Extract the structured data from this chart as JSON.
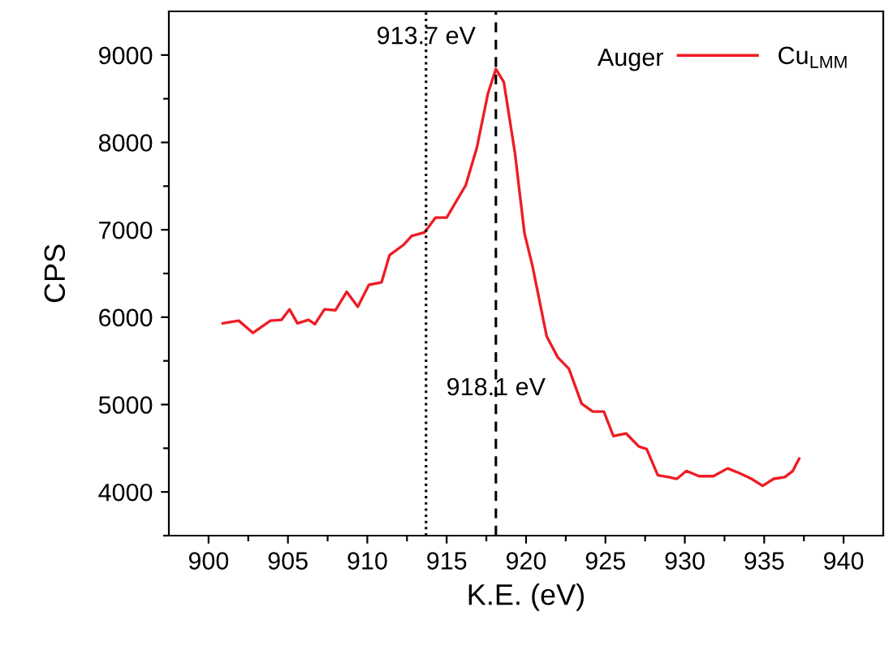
{
  "chart_data": {
    "type": "line",
    "xlabel": "K.E. (eV)",
    "ylabel": "CPS",
    "legend_title": "Auger",
    "legend": "top right",
    "grid": false,
    "xlim": [
      897.5,
      942.5
    ],
    "ylim": [
      3500,
      9500
    ],
    "xticks": [
      900,
      {
        "value": 902.5,
        "label": null
      },
      905,
      {
        "value": 907.5,
        "label": null
      },
      910,
      {
        "value": 912.5,
        "label": null
      },
      915,
      {
        "value": 917.5,
        "label": null
      },
      920,
      {
        "value": 922.5,
        "label": null
      },
      925,
      {
        "value": 927.5,
        "label": null
      },
      930,
      {
        "value": 932.5,
        "label": null
      },
      935,
      {
        "value": 937.5,
        "label": null
      },
      940
    ],
    "yticks": [
      {
        "value": 3500,
        "label": null
      },
      4000,
      {
        "value": 4500,
        "label": null
      },
      5000,
      {
        "value": 5500,
        "label": null
      },
      6000,
      {
        "value": 6500,
        "label": null
      },
      7000,
      {
        "value": 7500,
        "label": null
      },
      8000,
      {
        "value": 8500,
        "label": null
      },
      9000
    ],
    "ref_lines": [
      {
        "axis": "x",
        "value": 913.7,
        "label": "913.7 eV",
        "line_style": "dotted",
        "color": "#000000"
      },
      {
        "axis": "x",
        "value": 918.1,
        "label": "918.1 eV",
        "line_style": "dashed",
        "color": "#000000"
      }
    ],
    "series": [
      {
        "name": "Cu$_{LMM}$",
        "color": "#ee1c25",
        "line_style": "solid",
        "x": [
          900.9,
          901.9,
          902.8,
          903.9,
          904.6,
          905.1,
          905.6,
          906.3,
          906.7,
          907.3,
          908.0,
          908.7,
          909.4,
          910.1,
          910.9,
          911.4,
          912.3,
          912.8,
          913.6,
          914.3,
          915.0,
          916.2,
          916.9,
          917.6,
          918.1,
          918.6,
          919.3,
          919.9,
          920.4,
          921.3,
          922.0,
          922.7,
          923.5,
          924.2,
          924.9,
          925.5,
          926.3,
          927.1,
          927.6,
          928.3,
          929.0,
          929.5,
          930.1,
          930.9,
          931.8,
          932.7,
          933.5,
          934.2,
          934.9,
          935.6,
          936.3,
          936.8,
          937.2
        ],
        "values": [
          5930,
          5960,
          5820,
          5960,
          5970,
          6090,
          5930,
          5970,
          5920,
          6090,
          6080,
          6290,
          6120,
          6370,
          6400,
          6710,
          6830,
          6930,
          6970,
          7140,
          7140,
          7510,
          7940,
          8560,
          8840,
          8690,
          7880,
          6960,
          6590,
          5780,
          5540,
          5410,
          5010,
          4920,
          4920,
          4640,
          4670,
          4520,
          4490,
          4190,
          4170,
          4150,
          4240,
          4180,
          4180,
          4270,
          4210,
          4150,
          4070,
          4150,
          4170,
          4240,
          4380
        ]
      }
    ]
  }
}
